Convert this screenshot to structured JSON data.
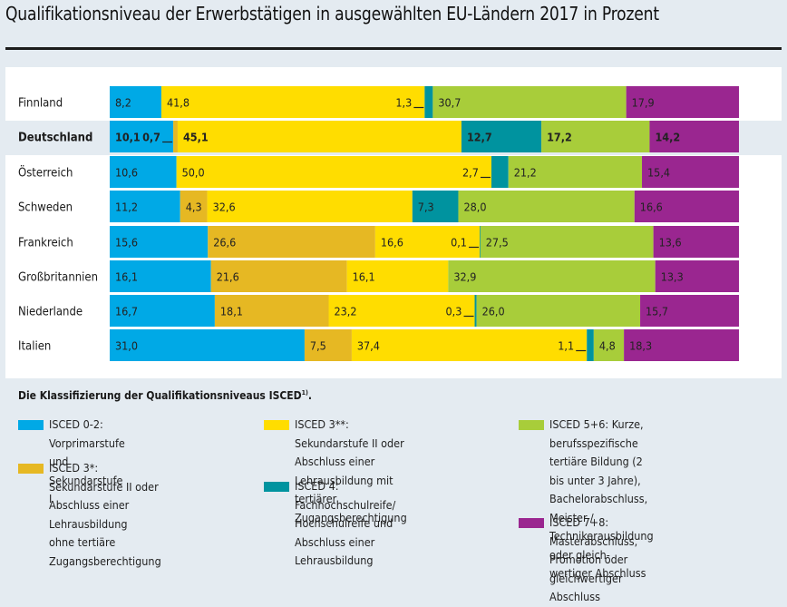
{
  "title": "Qualifikationsniveau der Erwerbstätigen in ausgewählten EU-Ländern 2017 in Prozent",
  "legend": {
    "title": "Die Klassifizierung der Qualifikationsniveaus ISCED",
    "title_footnote": "1)",
    "title_suffix": ".",
    "items": [
      {
        "key": "isced02",
        "text": "ISCED 0-2: Vorprimarstufe\nund Sekundarstufe I"
      },
      {
        "key": "isced3a",
        "text": "ISCED 3*: Sekundarstufe II oder\nAbschluss einer Lehrausbildung\nohne tertiäre Zugangsberechtigung"
      },
      {
        "key": "isced3b",
        "text": "ISCED 3**: Sekundarstufe II oder\nAbschluss einer Lehrausbildung mit\ntertiärer Zugangsberechtigung"
      },
      {
        "key": "isced4",
        "text": "ISCED 4: Fachhochschulreife/\nHochschulreife und Abschluss einer\nLehrausbildung"
      },
      {
        "key": "isced56",
        "text": "ISCED 5+6: Kurze, berufsspezifische\ntertiäre Bildung (2 bis unter 3 Jahre),\nBachelorabschluss, Meister-/\nTechnikerausbildung oder gleich-\nwertiger Abschluss"
      },
      {
        "key": "isced78",
        "text": "ISCED 7+8: Masterabschluss,\nPromotion oder gleichwertiger\nAbschluss"
      }
    ]
  },
  "colors": {
    "isced02": "#00a9e6",
    "isced3a": "#e6b823",
    "isced3b": "#ffdd00",
    "isced4": "#00939f",
    "isced56": "#a8cd3a",
    "isced78": "#9a2690"
  },
  "chart_data": {
    "type": "bar",
    "orientation": "horizontal",
    "stacked": true,
    "title": "Qualifikationsniveau der Erwerbstätigen in ausgewählten EU-Ländern 2017 in Prozent",
    "xlabel": "",
    "ylabel": "",
    "xlim": [
      0,
      100
    ],
    "unit": "Prozent",
    "highlight_category": "Deutschland",
    "categories": [
      "Finnland",
      "Deutschland",
      "Österreich",
      "Schweden",
      "Frankreich",
      "Großbritannien",
      "Niederlande",
      "Italien"
    ],
    "series": [
      {
        "name": "ISCED 0-2",
        "key": "isced02",
        "values": [
          8.2,
          10.1,
          10.6,
          11.2,
          15.6,
          16.1,
          16.7,
          31.0
        ]
      },
      {
        "name": "ISCED 3*",
        "key": "isced3a",
        "values": [
          null,
          0.7,
          null,
          4.3,
          26.6,
          21.6,
          18.1,
          7.5
        ]
      },
      {
        "name": "ISCED 3**",
        "key": "isced3b",
        "values": [
          41.8,
          45.1,
          50.0,
          32.6,
          16.6,
          16.1,
          23.2,
          37.4
        ]
      },
      {
        "name": "ISCED 4",
        "key": "isced4",
        "values": [
          1.3,
          12.7,
          2.7,
          7.3,
          0.1,
          null,
          0.3,
          1.1
        ]
      },
      {
        "name": "ISCED 5+6",
        "key": "isced56",
        "values": [
          30.7,
          17.2,
          21.2,
          28.0,
          27.5,
          32.9,
          26.0,
          4.8
        ]
      },
      {
        "name": "ISCED 7+8",
        "key": "isced78",
        "values": [
          17.9,
          14.2,
          15.4,
          16.6,
          13.6,
          13.3,
          15.7,
          18.3
        ]
      }
    ],
    "labels": [
      [
        "8,2",
        null,
        "41,8",
        "1,3",
        "30,7",
        "17,9"
      ],
      [
        "10,1",
        "0,7",
        "45,1",
        "12,7",
        "17,2",
        "14,2"
      ],
      [
        "10,6",
        null,
        "50,0",
        "2,7",
        "21,2",
        "15,4"
      ],
      [
        "11,2",
        "4,3",
        "32,6",
        "7,3",
        "28,0",
        "16,6"
      ],
      [
        "15,6",
        "26,6",
        "16,6",
        "0,1",
        "27,5",
        "13,6"
      ],
      [
        "16,1",
        "21,6",
        "16,1",
        null,
        "32,9",
        "13,3"
      ],
      [
        "16,7",
        "18,1",
        "23,2",
        "0,3",
        "26,0",
        "15,7"
      ],
      [
        "31,0",
        "7,5",
        "37,4",
        "1,1",
        "4,8",
        "18,3"
      ]
    ],
    "legend_position": "bottom",
    "grid": false
  }
}
